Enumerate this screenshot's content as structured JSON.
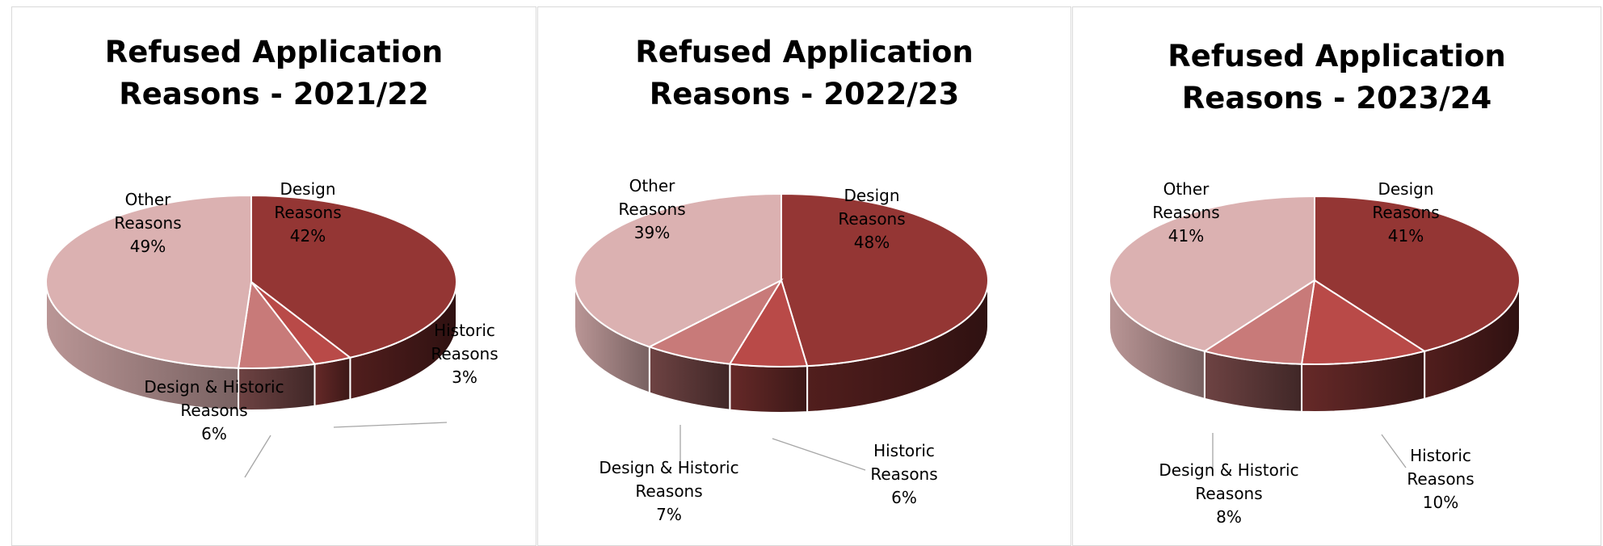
{
  "chart_data": [
    {
      "type": "pie",
      "title_line1": "Refused Application",
      "title_line2": "Reasons - 2021/22",
      "slices": [
        {
          "name": "Design Reasons",
          "label_lines": [
            "Design",
            "Reasons"
          ],
          "pct_label": "42%",
          "value": 42,
          "color": "#943634"
        },
        {
          "name": "Historic Reasons",
          "label_lines": [
            "Historic",
            "Reasons"
          ],
          "pct_label": "3%",
          "value": 3,
          "color": "#b94a48"
        },
        {
          "name": "Design & Historic Reasons",
          "label_lines": [
            "Design & Historic",
            "Reasons"
          ],
          "pct_label": "6%",
          "value": 6,
          "color": "#c87a79"
        },
        {
          "name": "Other Reasons",
          "label_lines": [
            "Other",
            "Reasons"
          ],
          "pct_label": "49%",
          "value": 49,
          "color": "#dbb1b1"
        }
      ]
    },
    {
      "type": "pie",
      "title_line1": "Refused Application",
      "title_line2": "Reasons - 2022/23",
      "slices": [
        {
          "name": "Design Reasons",
          "label_lines": [
            "Design",
            "Reasons"
          ],
          "pct_label": "48%",
          "value": 48,
          "color": "#943634"
        },
        {
          "name": "Historic Reasons",
          "label_lines": [
            "Historic",
            "Reasons"
          ],
          "pct_label": "6%",
          "value": 6,
          "color": "#b94a48"
        },
        {
          "name": "Design & Historic Reasons",
          "label_lines": [
            "Design & Historic",
            "Reasons"
          ],
          "pct_label": "7%",
          "value": 7,
          "color": "#c87a79"
        },
        {
          "name": "Other Reasons",
          "label_lines": [
            "Other",
            "Reasons"
          ],
          "pct_label": "39%",
          "value": 39,
          "color": "#dbb1b1"
        }
      ]
    },
    {
      "type": "pie",
      "title_line1": "Refused Application",
      "title_line2": "Reasons - 2023/24",
      "slices": [
        {
          "name": "Design Reasons",
          "label_lines": [
            "Design",
            "Reasons"
          ],
          "pct_label": "41%",
          "value": 41,
          "color": "#943634"
        },
        {
          "name": "Historic Reasons",
          "label_lines": [
            "Historic",
            "Reasons"
          ],
          "pct_label": "10%",
          "value": 10,
          "color": "#b94a48"
        },
        {
          "name": "Design & Historic Reasons",
          "label_lines": [
            "Design & Historic",
            "Reasons"
          ],
          "pct_label": "8%",
          "value": 8,
          "color": "#c87a79"
        },
        {
          "name": "Other Reasons",
          "label_lines": [
            "Other",
            "Reasons"
          ],
          "pct_label": "41%",
          "value": 41,
          "color": "#dbb1b1"
        }
      ]
    }
  ]
}
